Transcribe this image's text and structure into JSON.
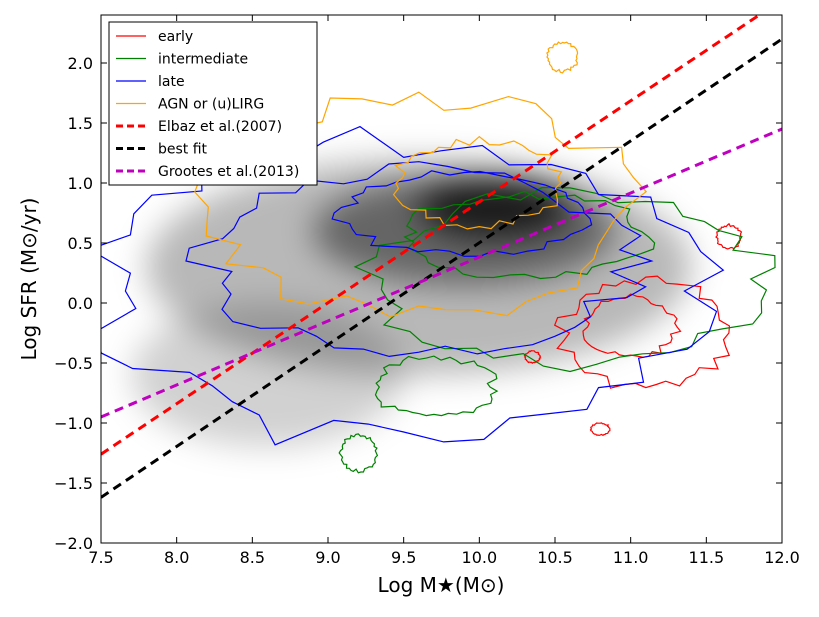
{
  "chart_data": {
    "type": "scatter",
    "xlabel": "Log M★(M⊙)",
    "ylabel": "Log SFR (M⊙/yr)",
    "xlim": [
      7.5,
      12.0
    ],
    "ylim": [
      -2.0,
      2.4
    ],
    "x_ticks": [
      "7.5",
      "8.0",
      "8.5",
      "9.0",
      "9.5",
      "10.0",
      "10.5",
      "11.0",
      "11.5",
      "12.0"
    ],
    "y_ticks": [
      "−2.0",
      "−1.5",
      "−1.0",
      "−0.5",
      "0.0",
      "0.5",
      "1.0",
      "1.5",
      "2.0"
    ],
    "grid": false,
    "legend_position": "top-left",
    "series": [
      {
        "name": "early",
        "kind": "contour",
        "color": "#ff0000",
        "regions": [
          {
            "cx": 11.1,
            "cy": -0.25,
            "rx": 0.55,
            "ry": 0.45
          },
          {
            "cx": 11.0,
            "cy": -0.2,
            "rx": 0.3,
            "ry": 0.25
          },
          {
            "cx": 10.35,
            "cy": -0.45,
            "rx": 0.05,
            "ry": 0.05
          },
          {
            "cx": 10.8,
            "cy": -1.05,
            "rx": 0.06,
            "ry": 0.05
          },
          {
            "cx": 11.65,
            "cy": 0.55,
            "rx": 0.08,
            "ry": 0.1
          }
        ]
      },
      {
        "name": "intermediate",
        "kind": "contour",
        "color": "#008000",
        "regions": [
          {
            "cx": 10.6,
            "cy": 0.2,
            "rx": 1.3,
            "ry": 0.7
          },
          {
            "cx": 10.3,
            "cy": 0.55,
            "rx": 0.8,
            "ry": 0.35
          },
          {
            "cx": 9.7,
            "cy": -0.7,
            "rx": 0.4,
            "ry": 0.25
          },
          {
            "cx": 9.2,
            "cy": -1.25,
            "rx": 0.12,
            "ry": 0.15
          }
        ]
      },
      {
        "name": "late",
        "kind": "contour",
        "color": "#0000ff",
        "regions": [
          {
            "cx": 9.5,
            "cy": 0.1,
            "rx": 2.0,
            "ry": 1.25
          },
          {
            "cx": 9.6,
            "cy": 0.35,
            "rx": 1.4,
            "ry": 0.75
          },
          {
            "cx": 9.9,
            "cy": 0.75,
            "rx": 0.8,
            "ry": 0.35
          }
        ]
      },
      {
        "name": "AGN or (u)LIRG",
        "kind": "contour",
        "color": "#ffa500",
        "regions": [
          {
            "cx": 9.6,
            "cy": 0.8,
            "rx": 1.4,
            "ry": 0.9
          },
          {
            "cx": 10.0,
            "cy": 1.0,
            "rx": 0.55,
            "ry": 0.35
          },
          {
            "cx": 10.55,
            "cy": 2.05,
            "rx": 0.1,
            "ry": 0.12
          }
        ]
      },
      {
        "name": "Elbaz et al.(2007)",
        "kind": "line",
        "color": "#ff0000",
        "dash": true,
        "x": [
          7.5,
          11.85
        ],
        "y": [
          -1.26,
          2.4
        ]
      },
      {
        "name": "best fit",
        "kind": "line",
        "color": "#000000",
        "dash": true,
        "x": [
          7.5,
          12.0
        ],
        "y": [
          -1.62,
          2.2
        ]
      },
      {
        "name": "Grootes et al.(2013)",
        "kind": "line",
        "color": "#bf00bf",
        "dash": true,
        "x": [
          7.5,
          12.0
        ],
        "y": [
          -0.95,
          1.45
        ]
      }
    ],
    "density": {
      "color": "#000000",
      "blobs": [
        {
          "cx": 9.6,
          "cy": 0.3,
          "rx": 1.8,
          "ry": 0.9,
          "opacity": 0.28
        },
        {
          "cx": 9.9,
          "cy": 0.6,
          "rx": 1.0,
          "ry": 0.45,
          "opacity": 0.45
        },
        {
          "cx": 10.1,
          "cy": 0.8,
          "rx": 0.5,
          "ry": 0.25,
          "opacity": 0.75
        },
        {
          "cx": 8.6,
          "cy": -0.6,
          "rx": 0.9,
          "ry": 0.6,
          "opacity": 0.18
        }
      ]
    }
  }
}
